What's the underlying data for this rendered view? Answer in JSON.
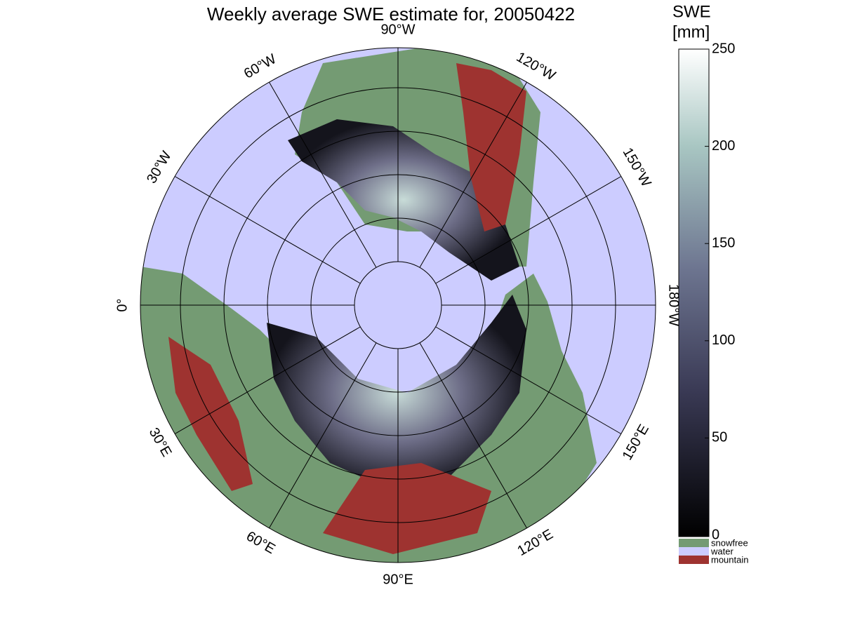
{
  "title": "Weekly average SWE estimate for, 20050422",
  "map": {
    "longitude_labels": [
      "90°W",
      "120°W",
      "150°W",
      "180°W",
      "150°E",
      "120°E",
      "90°E",
      "60°E",
      "30°E",
      "0°",
      "30°W",
      "60°W"
    ]
  },
  "colorbar": {
    "label_lines": [
      "SWE",
      "[mm]"
    ],
    "range": [
      0,
      250
    ],
    "ticks": [
      0,
      50,
      100,
      150,
      200,
      250
    ]
  },
  "legend": [
    {
      "name": "snowfree",
      "color": "#749b73"
    },
    {
      "name": "water",
      "color": "#ccccff"
    },
    {
      "name": "mountain",
      "color": "#9e3330"
    }
  ]
}
